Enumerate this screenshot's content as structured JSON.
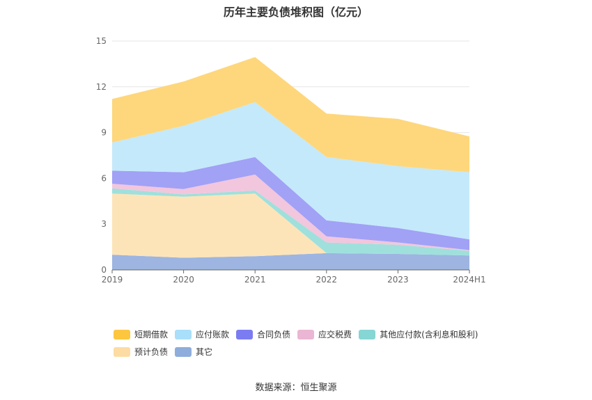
{
  "title": "历年主要负债堆积图（亿元）",
  "source": "数据来源：恒生聚源",
  "chart_data": {
    "type": "area",
    "stacked": true,
    "categories": [
      "2019",
      "2020",
      "2021",
      "2022",
      "2023",
      "2024H1"
    ],
    "ylim": [
      0,
      15
    ],
    "yticks": [
      "0",
      "3",
      "6",
      "9",
      "12",
      "15"
    ],
    "grid": true,
    "legend_position": "bottom",
    "series": [
      {
        "name": "其它",
        "color": "#9db5e0",
        "values": [
          1.0,
          0.8,
          0.9,
          1.1,
          1.05,
          0.95
        ]
      },
      {
        "name": "预计负债",
        "color": "#fde4b8",
        "values": [
          4.0,
          4.0,
          4.1,
          0.0,
          0.0,
          0.0
        ]
      },
      {
        "name": "其他应付款(含利息和股利)",
        "color": "#9fe0dc",
        "values": [
          0.35,
          0.15,
          0.2,
          0.7,
          0.6,
          0.3
        ]
      },
      {
        "name": "应交税费",
        "color": "#f2c6dd",
        "values": [
          0.3,
          0.35,
          1.05,
          0.4,
          0.15,
          0.05
        ]
      },
      {
        "name": "合同负债",
        "color": "#a1a1f6",
        "values": [
          0.85,
          1.1,
          1.15,
          1.05,
          0.95,
          0.7
        ]
      },
      {
        "name": "应付账款",
        "color": "#c4e9fb",
        "values": [
          1.85,
          3.05,
          3.6,
          4.15,
          4.05,
          4.4
        ]
      },
      {
        "name": "短期借款",
        "color": "#fed77c",
        "values": [
          2.85,
          2.9,
          2.95,
          2.85,
          3.1,
          2.35
        ]
      }
    ]
  },
  "legend": [
    {
      "name": "短期借款",
      "color": "#fdc63f"
    },
    {
      "name": "应付账款",
      "color": "#a9dffa"
    },
    {
      "name": "合同负债",
      "color": "#7b7cf2"
    },
    {
      "name": "应交税费",
      "color": "#ebb6d3"
    },
    {
      "name": "其他应付款(含利息和股利)",
      "color": "#85d6d4"
    },
    {
      "name": "预计负债",
      "color": "#fddca3"
    },
    {
      "name": "其它",
      "color": "#8eaddc"
    }
  ]
}
